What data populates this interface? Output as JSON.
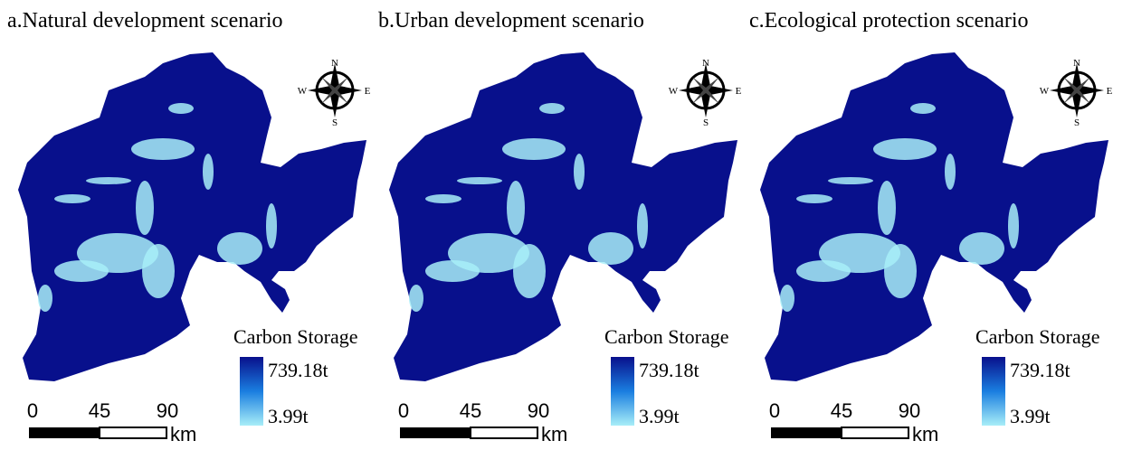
{
  "panels": [
    {
      "title": "a.Natural development scenario",
      "legend": {
        "title": "Carbon Storage",
        "max": "739.18t",
        "min": "3.99t"
      },
      "scale": {
        "ticks": [
          "0",
          "45",
          "90"
        ],
        "unit": "km"
      },
      "compass": {
        "n": "N",
        "s": "S",
        "w": "W",
        "e": "E"
      }
    },
    {
      "title": "b.Urban development scenario",
      "legend": {
        "title": "Carbon Storage",
        "max": "739.18t",
        "min": "3.99t"
      },
      "scale": {
        "ticks": [
          "0",
          "45",
          "90"
        ],
        "unit": "km"
      },
      "compass": {
        "n": "N",
        "s": "S",
        "w": "W",
        "e": "E"
      }
    },
    {
      "title": "c.Ecological protection scenario",
      "legend": {
        "title": "Carbon Storage",
        "max": "739.18t",
        "min": "3.99t"
      },
      "scale": {
        "ticks": [
          "0",
          "45",
          "90"
        ],
        "unit": "km"
      },
      "compass": {
        "n": "N",
        "s": "S",
        "w": "W",
        "e": "E"
      }
    }
  ]
}
